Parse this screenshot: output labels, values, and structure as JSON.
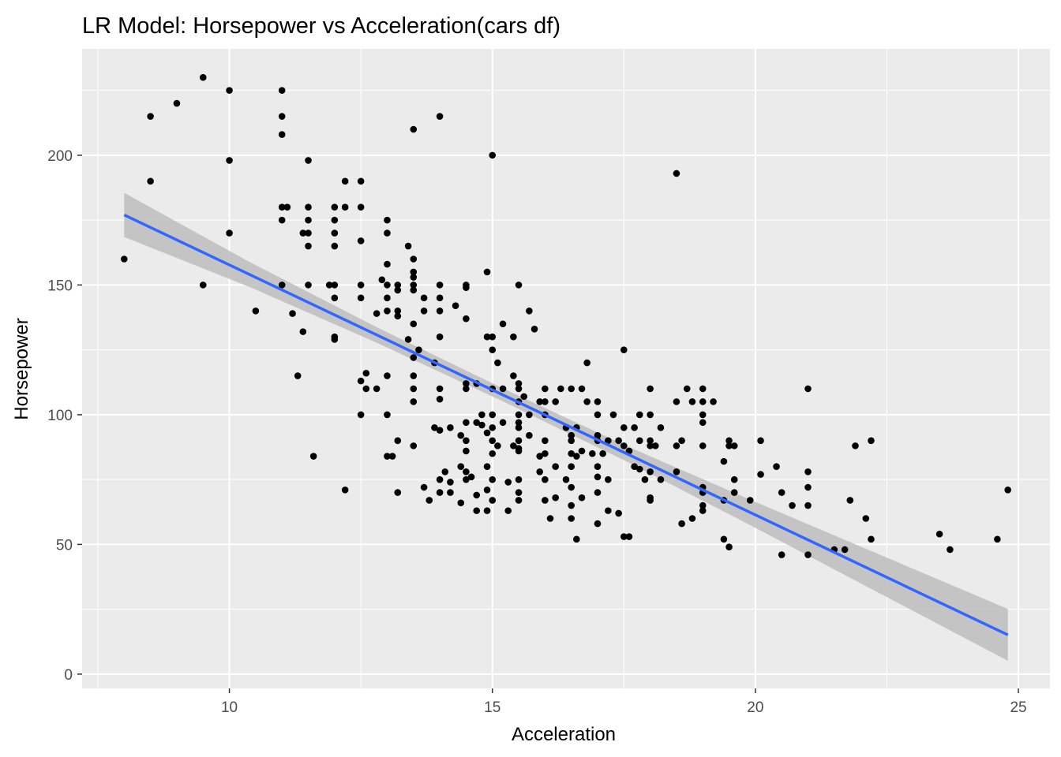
{
  "chart_data": {
    "type": "scatter",
    "title": "LR Model: Horsepower vs Acceleration(cars df)",
    "xlabel": "Acceleration",
    "ylabel": "Horsepower",
    "xlim": [
      7.2,
      25.6
    ],
    "ylim": [
      -5.5,
      241
    ],
    "xticks": [
      "10",
      "15",
      "20",
      "25"
    ],
    "xtick_values": [
      10,
      15,
      20,
      25
    ],
    "yticks": [
      "0",
      "50",
      "100",
      "150",
      "200"
    ],
    "ytick_values": [
      0,
      50,
      100,
      150,
      200
    ],
    "grid": true,
    "colors": {
      "panel": "#ebebeb",
      "grid_major": "#ffffff",
      "point": "#000000",
      "fit_line": "#3366ff",
      "confidence_band": "#bdbdbd"
    },
    "regression": {
      "x_range": [
        8.0,
        24.8
      ],
      "intercept": 254.1,
      "slope": -9.636,
      "band_half_width": [
        8.5,
        4.8,
        3.0,
        2.5,
        3.0,
        5.0,
        7.5,
        10.0
      ]
    },
    "points": [
      [
        8.0,
        160
      ],
      [
        8.5,
        215
      ],
      [
        8.5,
        190
      ],
      [
        9.0,
        220
      ],
      [
        9.5,
        230
      ],
      [
        9.5,
        150
      ],
      [
        10.0,
        225
      ],
      [
        10.0,
        198
      ],
      [
        10.0,
        170
      ],
      [
        10.5,
        140
      ],
      [
        11.0,
        225
      ],
      [
        11.0,
        215
      ],
      [
        11.0,
        208
      ],
      [
        11.0,
        180
      ],
      [
        11.0,
        175
      ],
      [
        11.0,
        150
      ],
      [
        11.1,
        180
      ],
      [
        11.2,
        139
      ],
      [
        11.3,
        115
      ],
      [
        11.4,
        132
      ],
      [
        11.4,
        170
      ],
      [
        11.5,
        198
      ],
      [
        11.5,
        180
      ],
      [
        11.5,
        175
      ],
      [
        11.5,
        170
      ],
      [
        11.5,
        165
      ],
      [
        11.5,
        150
      ],
      [
        11.6,
        84
      ],
      [
        11.9,
        150
      ],
      [
        12.0,
        180
      ],
      [
        12.0,
        175
      ],
      [
        12.0,
        170
      ],
      [
        12.0,
        165
      ],
      [
        12.0,
        150
      ],
      [
        12.0,
        145
      ],
      [
        12.0,
        130
      ],
      [
        12.0,
        129
      ],
      [
        12.2,
        180
      ],
      [
        12.2,
        190
      ],
      [
        12.2,
        71
      ],
      [
        12.5,
        190
      ],
      [
        12.5,
        180
      ],
      [
        12.5,
        167
      ],
      [
        12.5,
        150
      ],
      [
        12.5,
        145
      ],
      [
        12.5,
        113
      ],
      [
        12.5,
        100
      ],
      [
        12.6,
        116
      ],
      [
        12.6,
        110
      ],
      [
        12.8,
        139
      ],
      [
        12.8,
        110
      ],
      [
        12.9,
        152
      ],
      [
        13.0,
        175
      ],
      [
        13.0,
        170
      ],
      [
        13.0,
        158
      ],
      [
        13.0,
        150
      ],
      [
        13.0,
        145
      ],
      [
        13.0,
        140
      ],
      [
        13.0,
        115
      ],
      [
        13.0,
        100
      ],
      [
        13.0,
        84
      ],
      [
        13.1,
        84
      ],
      [
        13.2,
        150
      ],
      [
        13.2,
        140
      ],
      [
        13.2,
        138
      ],
      [
        13.2,
        148
      ],
      [
        13.2,
        90
      ],
      [
        13.2,
        70
      ],
      [
        13.4,
        165
      ],
      [
        13.4,
        129
      ],
      [
        13.5,
        210
      ],
      [
        13.5,
        160
      ],
      [
        13.5,
        155
      ],
      [
        13.5,
        153
      ],
      [
        13.5,
        150
      ],
      [
        13.5,
        148
      ],
      [
        13.5,
        135
      ],
      [
        13.5,
        122
      ],
      [
        13.5,
        115
      ],
      [
        13.5,
        110
      ],
      [
        13.5,
        105
      ],
      [
        13.5,
        88
      ],
      [
        13.6,
        125
      ],
      [
        13.7,
        72
      ],
      [
        13.7,
        140
      ],
      [
        13.7,
        145
      ],
      [
        13.8,
        67
      ],
      [
        13.9,
        120
      ],
      [
        13.9,
        95
      ],
      [
        14.0,
        215
      ],
      [
        14.0,
        150
      ],
      [
        14.0,
        145
      ],
      [
        14.0,
        140
      ],
      [
        14.0,
        130
      ],
      [
        14.0,
        110
      ],
      [
        14.0,
        106
      ],
      [
        14.0,
        94
      ],
      [
        14.0,
        75
      ],
      [
        14.0,
        70
      ],
      [
        14.1,
        78
      ],
      [
        14.2,
        95
      ],
      [
        14.2,
        74
      ],
      [
        14.2,
        70
      ],
      [
        14.3,
        142
      ],
      [
        14.4,
        92
      ],
      [
        14.4,
        80
      ],
      [
        14.4,
        66
      ],
      [
        14.5,
        150
      ],
      [
        14.5,
        149
      ],
      [
        14.5,
        137
      ],
      [
        14.5,
        112
      ],
      [
        14.5,
        110
      ],
      [
        14.5,
        97
      ],
      [
        14.5,
        90
      ],
      [
        14.5,
        86
      ],
      [
        14.5,
        78
      ],
      [
        14.5,
        75
      ],
      [
        14.6,
        76
      ],
      [
        14.7,
        112
      ],
      [
        14.7,
        97
      ],
      [
        14.7,
        69
      ],
      [
        14.7,
        63
      ],
      [
        14.8,
        100
      ],
      [
        14.8,
        96
      ],
      [
        14.9,
        155
      ],
      [
        14.9,
        130
      ],
      [
        14.9,
        93
      ],
      [
        14.9,
        80
      ],
      [
        14.9,
        71
      ],
      [
        14.9,
        63
      ],
      [
        15.0,
        200
      ],
      [
        15.0,
        130
      ],
      [
        15.0,
        125
      ],
      [
        15.0,
        110
      ],
      [
        15.0,
        100
      ],
      [
        15.0,
        95
      ],
      [
        15.0,
        90
      ],
      [
        15.0,
        85
      ],
      [
        15.0,
        75
      ],
      [
        15.0,
        67
      ],
      [
        15.1,
        120
      ],
      [
        15.1,
        88
      ],
      [
        15.2,
        135
      ],
      [
        15.2,
        110
      ],
      [
        15.2,
        97
      ],
      [
        15.3,
        74
      ],
      [
        15.3,
        63
      ],
      [
        15.4,
        130
      ],
      [
        15.4,
        115
      ],
      [
        15.4,
        88
      ],
      [
        15.5,
        150
      ],
      [
        15.5,
        112
      ],
      [
        15.5,
        110
      ],
      [
        15.5,
        105
      ],
      [
        15.5,
        100
      ],
      [
        15.5,
        97
      ],
      [
        15.5,
        95
      ],
      [
        15.5,
        90
      ],
      [
        15.5,
        87
      ],
      [
        15.5,
        86
      ],
      [
        15.5,
        75
      ],
      [
        15.5,
        70
      ],
      [
        15.5,
        67
      ],
      [
        15.6,
        107
      ],
      [
        15.7,
        140
      ],
      [
        15.7,
        100
      ],
      [
        15.7,
        92
      ],
      [
        15.8,
        133
      ],
      [
        15.9,
        105
      ],
      [
        15.9,
        78
      ],
      [
        15.9,
        84
      ],
      [
        16.0,
        110
      ],
      [
        16.0,
        105
      ],
      [
        16.0,
        100
      ],
      [
        16.0,
        90
      ],
      [
        16.0,
        85
      ],
      [
        16.0,
        75
      ],
      [
        16.0,
        67
      ],
      [
        16.1,
        60
      ],
      [
        16.2,
        105
      ],
      [
        16.2,
        80
      ],
      [
        16.2,
        68
      ],
      [
        16.3,
        110
      ],
      [
        16.4,
        95
      ],
      [
        16.4,
        75
      ],
      [
        16.5,
        110
      ],
      [
        16.5,
        92
      ],
      [
        16.5,
        90
      ],
      [
        16.5,
        85
      ],
      [
        16.5,
        80
      ],
      [
        16.5,
        72
      ],
      [
        16.5,
        65
      ],
      [
        16.5,
        60
      ],
      [
        16.6,
        95
      ],
      [
        16.6,
        84
      ],
      [
        16.6,
        52
      ],
      [
        16.7,
        110
      ],
      [
        16.7,
        86
      ],
      [
        16.7,
        68
      ],
      [
        16.8,
        120
      ],
      [
        16.8,
        105
      ],
      [
        16.9,
        85
      ],
      [
        17.0,
        105
      ],
      [
        17.0,
        100
      ],
      [
        17.0,
        92
      ],
      [
        17.0,
        90
      ],
      [
        17.0,
        80
      ],
      [
        17.0,
        76
      ],
      [
        17.0,
        70
      ],
      [
        17.0,
        58
      ],
      [
        17.1,
        85
      ],
      [
        17.2,
        90
      ],
      [
        17.2,
        63
      ],
      [
        17.2,
        75
      ],
      [
        17.3,
        100
      ],
      [
        17.4,
        90
      ],
      [
        17.4,
        62
      ],
      [
        17.5,
        125
      ],
      [
        17.5,
        95
      ],
      [
        17.5,
        88
      ],
      [
        17.5,
        53
      ],
      [
        17.6,
        53
      ],
      [
        17.6,
        86
      ],
      [
        17.7,
        95
      ],
      [
        17.7,
        80
      ],
      [
        17.8,
        100
      ],
      [
        17.8,
        90
      ],
      [
        17.8,
        79
      ],
      [
        17.9,
        75
      ],
      [
        18.0,
        110
      ],
      [
        18.0,
        100
      ],
      [
        18.0,
        90
      ],
      [
        18.0,
        88
      ],
      [
        18.0,
        78
      ],
      [
        18.0,
        68
      ],
      [
        18.0,
        67
      ],
      [
        18.1,
        88
      ],
      [
        18.2,
        95
      ],
      [
        18.2,
        75
      ],
      [
        18.5,
        193
      ],
      [
        18.5,
        105
      ],
      [
        18.5,
        88
      ],
      [
        18.5,
        78
      ],
      [
        18.6,
        90
      ],
      [
        18.6,
        58
      ],
      [
        18.7,
        110
      ],
      [
        18.8,
        105
      ],
      [
        18.8,
        60
      ],
      [
        19.0,
        110
      ],
      [
        19.0,
        105
      ],
      [
        19.0,
        100
      ],
      [
        19.0,
        97
      ],
      [
        19.0,
        88
      ],
      [
        19.0,
        72
      ],
      [
        19.0,
        70
      ],
      [
        19.0,
        65
      ],
      [
        19.0,
        63
      ],
      [
        19.2,
        105
      ],
      [
        19.4,
        82
      ],
      [
        19.4,
        67
      ],
      [
        19.4,
        52
      ],
      [
        19.5,
        90
      ],
      [
        19.5,
        88
      ],
      [
        19.5,
        49
      ],
      [
        19.6,
        88
      ],
      [
        19.6,
        75
      ],
      [
        19.6,
        70
      ],
      [
        19.9,
        67
      ],
      [
        20.1,
        90
      ],
      [
        20.1,
        77
      ],
      [
        20.4,
        80
      ],
      [
        20.5,
        70
      ],
      [
        20.5,
        46
      ],
      [
        20.7,
        65
      ],
      [
        21.0,
        110
      ],
      [
        21.0,
        78
      ],
      [
        21.0,
        72
      ],
      [
        21.0,
        65
      ],
      [
        21.0,
        46
      ],
      [
        21.5,
        48
      ],
      [
        21.7,
        48
      ],
      [
        21.8,
        67
      ],
      [
        21.9,
        88
      ],
      [
        22.1,
        60
      ],
      [
        22.2,
        90
      ],
      [
        22.2,
        52
      ],
      [
        23.5,
        54
      ],
      [
        23.7,
        48
      ],
      [
        24.6,
        52
      ],
      [
        24.8,
        71
      ]
    ]
  }
}
